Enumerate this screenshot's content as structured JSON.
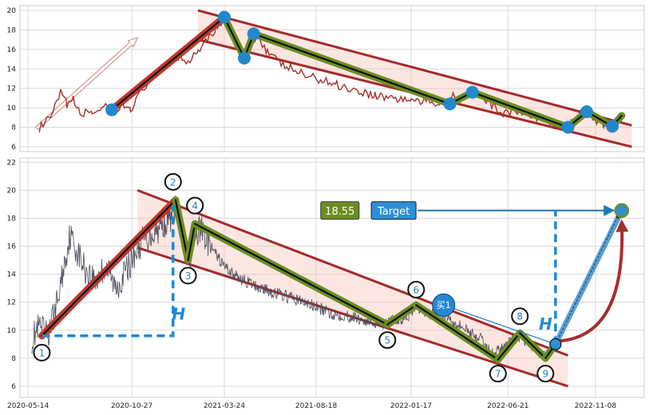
{
  "chart_data": [
    {
      "type": "line",
      "title": "",
      "xlabel": "",
      "ylabel": "",
      "ylim": [
        5.5,
        20.5
      ],
      "xlim": [
        "2020-05-01",
        "2023-01-25"
      ],
      "grid": true,
      "yticks": [
        6,
        8,
        10,
        12,
        14,
        16,
        18,
        20
      ],
      "x_gridlines": [
        "2020-05-14",
        "2020-10-27",
        "2021-03-24",
        "2021-08-18",
        "2022-01-17",
        "2022-06-21",
        "2022-11-08"
      ],
      "price_line": {
        "color": "#a5302c",
        "points": [
          [
            "2020-06-01",
            7.9
          ],
          [
            "2020-06-20",
            9.0
          ],
          [
            "2020-07-05",
            11.5
          ],
          [
            "2020-07-15",
            10.4
          ],
          [
            "2020-07-25",
            10.8
          ],
          [
            "2020-08-05",
            9.4
          ],
          [
            "2020-08-25",
            9.6
          ],
          [
            "2020-09-15",
            10.0
          ],
          [
            "2020-10-01",
            9.6
          ],
          [
            "2020-10-15",
            10.2
          ],
          [
            "2020-10-25",
            9.9
          ],
          [
            "2020-11-10",
            11.5
          ],
          [
            "2020-11-25",
            13.0
          ],
          [
            "2020-12-10",
            13.8
          ],
          [
            "2020-12-25",
            14.5
          ],
          [
            "2021-01-10",
            15.2
          ],
          [
            "2021-01-25",
            14.8
          ],
          [
            "2021-02-10",
            16.0
          ],
          [
            "2021-02-25",
            17.2
          ],
          [
            "2021-03-10",
            18.0
          ],
          [
            "2021-03-24",
            19.3
          ],
          [
            "2021-04-05",
            17.8
          ],
          [
            "2021-04-15",
            16.2
          ],
          [
            "2021-04-25",
            15.2
          ],
          [
            "2021-05-05",
            16.5
          ],
          [
            "2021-05-15",
            17.6
          ],
          [
            "2021-06-01",
            15.8
          ],
          [
            "2021-06-20",
            14.6
          ],
          [
            "2021-07-10",
            14.0
          ],
          [
            "2021-08-01",
            13.3
          ],
          [
            "2021-08-25",
            12.9
          ],
          [
            "2021-09-20",
            12.4
          ],
          [
            "2021-10-20",
            11.8
          ],
          [
            "2021-11-20",
            11.3
          ],
          [
            "2021-12-20",
            11.0
          ],
          [
            "2022-01-17",
            10.8
          ],
          [
            "2022-02-10",
            10.6
          ],
          [
            "2022-03-05",
            10.5
          ],
          [
            "2022-03-25",
            11.2
          ],
          [
            "2022-04-20",
            11.6
          ],
          [
            "2022-05-20",
            10.5
          ],
          [
            "2022-06-15",
            9.4
          ],
          [
            "2022-07-10",
            9.8
          ],
          [
            "2022-08-10",
            9.0
          ],
          [
            "2022-09-05",
            8.1
          ],
          [
            "2022-09-30",
            8.4
          ],
          [
            "2022-10-20",
            9.6
          ],
          [
            "2022-11-15",
            8.5
          ],
          [
            "2022-12-01",
            8.1
          ]
        ]
      },
      "trend_segments": [
        {
          "from": [
            "2020-09-25",
            9.8
          ],
          "to": [
            "2021-03-24",
            19.3
          ],
          "color": "#c0392b"
        },
        {
          "from": [
            "2021-03-24",
            19.3
          ],
          "to": [
            "2021-04-25",
            15.1
          ],
          "color": "#6b8e23"
        },
        {
          "from": [
            "2021-04-25",
            15.1
          ],
          "to": [
            "2021-05-10",
            17.6
          ],
          "color": "#6b8e23"
        },
        {
          "from": [
            "2021-05-10",
            17.6
          ],
          "to": [
            "2022-03-20",
            10.4
          ],
          "color": "#6b8e23"
        },
        {
          "from": [
            "2022-03-20",
            10.4
          ],
          "to": [
            "2022-04-25",
            11.6
          ],
          "color": "#6b8e23"
        },
        {
          "from": [
            "2022-04-25",
            11.6
          ],
          "to": [
            "2022-09-25",
            8.0
          ],
          "color": "#6b8e23"
        },
        {
          "from": [
            "2022-09-25",
            8.0
          ],
          "to": [
            "2022-10-25",
            9.6
          ],
          "color": "#6b8e23"
        },
        {
          "from": [
            "2022-10-25",
            9.6
          ],
          "to": [
            "2022-12-05",
            8.1
          ],
          "color": "#6b8e23"
        },
        {
          "from": [
            "2022-12-05",
            8.1
          ],
          "to": [
            "2022-12-20",
            9.2
          ],
          "color": "#6b8e23"
        }
      ],
      "pivots": [
        [
          "2020-09-25",
          9.8
        ],
        [
          "2021-03-24",
          19.3
        ],
        [
          "2021-04-25",
          15.1
        ],
        [
          "2021-05-10",
          17.6
        ],
        [
          "2022-03-20",
          10.4
        ],
        [
          "2022-04-25",
          11.6
        ],
        [
          "2022-09-25",
          8.0
        ],
        [
          "2022-10-25",
          9.6
        ],
        [
          "2022-12-05",
          8.1
        ]
      ],
      "channel": {
        "upper": [
          [
            "2021-02-10",
            20.0
          ],
          [
            "2023-01-05",
            8.2
          ]
        ],
        "lower": [
          [
            "2021-02-10",
            17.0
          ],
          [
            "2023-01-05",
            6.0
          ]
        ]
      },
      "up_arrow": {
        "from": [
          "2020-05-28",
          7.9
        ],
        "to": [
          "2020-11-05",
          17.2
        ]
      }
    },
    {
      "type": "line",
      "title": "",
      "xlabel": "",
      "ylabel": "",
      "ylim": [
        5.2,
        22.3
      ],
      "xlim": [
        "2020-05-01",
        "2023-01-25"
      ],
      "grid": true,
      "yticks": [
        6,
        8,
        10,
        12,
        14,
        16,
        18,
        20,
        22
      ],
      "xticks": [
        "2020-05-14",
        "2020-10-27",
        "2021-03-24",
        "2021-08-18",
        "2022-01-17",
        "2022-06-21",
        "2022-11-08"
      ],
      "price_line": {
        "color": "#4a4a5a",
        "points": [
          [
            "2020-05-20",
            9.4
          ],
          [
            "2020-06-01",
            10.2
          ],
          [
            "2020-06-15",
            9.6
          ],
          [
            "2020-07-01",
            12.2
          ],
          [
            "2020-07-10",
            14.5
          ],
          [
            "2020-07-20",
            16.8
          ],
          [
            "2020-08-01",
            15.6
          ],
          [
            "2020-08-15",
            14.2
          ],
          [
            "2020-09-01",
            13.6
          ],
          [
            "2020-09-15",
            14.6
          ],
          [
            "2020-10-01",
            13.0
          ],
          [
            "2020-10-15",
            14.0
          ],
          [
            "2020-11-01",
            15.5
          ],
          [
            "2020-11-15",
            16.5
          ],
          [
            "2020-12-01",
            17.0
          ],
          [
            "2020-12-15",
            17.5
          ],
          [
            "2021-01-01",
            18.3
          ],
          [
            "2021-01-05",
            19.0
          ],
          [
            "2021-01-15",
            16.8
          ],
          [
            "2021-01-25",
            15.0
          ],
          [
            "2021-02-05",
            16.5
          ],
          [
            "2021-02-15",
            17.3
          ],
          [
            "2021-03-01",
            16.0
          ],
          [
            "2021-03-20",
            14.8
          ],
          [
            "2021-04-10",
            13.9
          ],
          [
            "2021-05-10",
            13.2
          ],
          [
            "2021-06-10",
            12.7
          ],
          [
            "2021-07-10",
            12.3
          ],
          [
            "2021-08-10",
            11.8
          ],
          [
            "2021-09-10",
            11.2
          ],
          [
            "2021-10-10",
            11.0
          ],
          [
            "2021-11-10",
            10.6
          ],
          [
            "2021-12-10",
            10.5
          ],
          [
            "2022-01-10",
            11.0
          ],
          [
            "2022-01-25",
            11.6
          ],
          [
            "2022-02-15",
            11.2
          ],
          [
            "2022-03-15",
            11.0
          ],
          [
            "2022-04-10",
            10.2
          ],
          [
            "2022-05-10",
            9.3
          ],
          [
            "2022-05-25",
            8.3
          ],
          [
            "2022-06-10",
            8.6
          ],
          [
            "2022-06-25",
            9.2
          ],
          [
            "2022-07-10",
            9.6
          ],
          [
            "2022-07-25",
            9.0
          ],
          [
            "2022-08-10",
            8.4
          ],
          [
            "2022-08-25",
            8.2
          ]
        ]
      },
      "trend_segments": [
        {
          "from": [
            "2020-06-05",
            9.6
          ],
          "to": [
            "2021-01-05",
            19.3
          ],
          "color": "#c0392b"
        },
        {
          "from": [
            "2021-01-05",
            19.3
          ],
          "to": [
            "2021-01-25",
            15.0
          ],
          "color": "#6b8e23"
        },
        {
          "from": [
            "2021-01-25",
            15.0
          ],
          "to": [
            "2021-02-05",
            17.6
          ],
          "color": "#6b8e23"
        },
        {
          "from": [
            "2021-02-05",
            17.6
          ],
          "to": [
            "2021-12-10",
            10.4
          ],
          "color": "#6b8e23"
        },
        {
          "from": [
            "2021-12-10",
            10.4
          ],
          "to": [
            "2022-01-25",
            11.8
          ],
          "color": "#6b8e23"
        },
        {
          "from": [
            "2022-01-25",
            11.8
          ],
          "to": [
            "2022-06-05",
            7.9
          ],
          "color": "#6b8e23"
        },
        {
          "from": [
            "2022-06-05",
            7.9
          ],
          "to": [
            "2022-07-10",
            9.8
          ],
          "color": "#6b8e23"
        },
        {
          "from": [
            "2022-07-10",
            9.8
          ],
          "to": [
            "2022-08-20",
            8.0
          ],
          "color": "#6b8e23"
        },
        {
          "from": [
            "2022-08-20",
            8.0
          ],
          "to": [
            "2022-09-05",
            9.0
          ],
          "color": "#6b8e23"
        }
      ],
      "channel": {
        "upper": [
          [
            "2020-11-05",
            20.0
          ],
          [
            "2022-09-25",
            8.2
          ]
        ],
        "lower": [
          [
            "2020-11-05",
            15.9
          ],
          [
            "2022-09-25",
            6.0
          ]
        ]
      },
      "channel_fill_to": "2022-09-25",
      "labels": [
        {
          "text": "1",
          "x": "2020-06-05",
          "y": 8.4
        },
        {
          "text": "2",
          "x": "2021-01-01",
          "y": 20.6
        },
        {
          "text": "3",
          "x": "2021-01-25",
          "y": 13.9
        },
        {
          "text": "4",
          "x": "2021-02-05",
          "y": 18.9
        },
        {
          "text": "5",
          "x": "2021-12-10",
          "y": 9.3
        },
        {
          "text": "6",
          "x": "2022-01-25",
          "y": 12.9
        },
        {
          "text": "7",
          "x": "2022-06-05",
          "y": 6.9
        },
        {
          "text": "8",
          "x": "2022-07-10",
          "y": 11.0
        },
        {
          "text": "9",
          "x": "2022-08-20",
          "y": 6.9
        }
      ],
      "h_markers": [
        {
          "text": "H",
          "x": "2021-01-10",
          "y": 11.2,
          "dashed": {
            "from": [
              "2020-06-05",
              9.6
            ],
            "corner": [
              "2021-01-01",
              9.6
            ],
            "to": [
              "2021-01-01",
              19.0
            ]
          }
        },
        {
          "text": "H",
          "x": "2022-08-20",
          "y": 10.5,
          "dashed": {
            "from": [
              "2022-09-05",
              9.0
            ],
            "to": [
              "2022-09-05",
              18.5
            ]
          }
        }
      ],
      "value_box": {
        "text": "18.55",
        "x": "2021-09-25",
        "y": 18.55,
        "bg": "#6b8e23"
      },
      "target_box": {
        "text": "Target",
        "x": "2021-12-20",
        "y": 18.55,
        "bg": "#2c8fd6"
      },
      "target_point": {
        "x": "2022-12-20",
        "y": 18.55
      },
      "buy_marker": {
        "text": "买1",
        "x": "2022-03-10",
        "y": 11.8
      },
      "buy_point": {
        "x": "2022-09-05",
        "y": 9.0
      }
    }
  ]
}
